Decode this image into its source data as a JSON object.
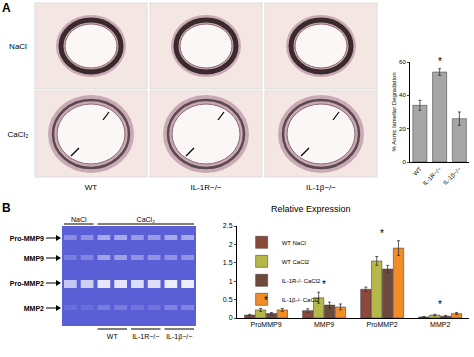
{
  "panel_labels": [
    "A",
    "B"
  ],
  "histology": {
    "rows": [
      "NaCl",
      "CaCl₂"
    ],
    "columns": [
      "WT",
      "IL-1R−/−",
      "IL-1β−/−"
    ]
  },
  "zymogram": {
    "treatments": [
      "NaCl",
      "CaCl₂"
    ],
    "lanes": [
      "WT",
      "IL-1R−/−",
      "IL-1β−/−"
    ],
    "bands": [
      "Pro-MMP9",
      "MMP9",
      "Pro-MMP2",
      "MMP2"
    ]
  },
  "chart_data": [
    {
      "type": "bar",
      "y_label": "% Aortic lamellar Degradation",
      "categories": [
        "WT",
        "IL-1R−/−",
        "IL-1β−/−"
      ],
      "values": [
        34,
        54,
        26
      ],
      "errors": [
        3,
        2,
        4
      ],
      "color": "#a6a6a6",
      "ylim": [
        0,
        60
      ],
      "yticks": [
        0,
        20,
        40,
        60
      ],
      "annotations": [
        {
          "category": "IL-1R−/−",
          "text": "*"
        }
      ]
    },
    {
      "type": "bar",
      "title": "Relative Expression",
      "categories": [
        "ProMMP9",
        "MMP9",
        "ProMMP2",
        "MMP2"
      ],
      "series": [
        {
          "name": "WT NaCl",
          "color": "#8b4a3c",
          "values": [
            0.08,
            0.2,
            0.78,
            0.03
          ],
          "errors": [
            0.02,
            0.05,
            0.06,
            0.01
          ]
        },
        {
          "name": "WT CaCl2",
          "color": "#b7b84a",
          "values": [
            0.22,
            0.55,
            1.55,
            0.08
          ],
          "errors": [
            0.04,
            0.15,
            0.12,
            0.02
          ]
        },
        {
          "name": "IL-1R-/- CaCl2",
          "color": "#6e4a3a",
          "values": [
            0.12,
            0.35,
            1.33,
            0.05
          ],
          "errors": [
            0.03,
            0.08,
            0.1,
            0.02
          ]
        },
        {
          "name": "IL-1β-/- CaCl2",
          "color": "#f28c28",
          "values": [
            0.22,
            0.3,
            1.9,
            0.12
          ],
          "errors": [
            0.04,
            0.08,
            0.2,
            0.03
          ]
        }
      ],
      "ylim": [
        0,
        2.5
      ],
      "yticks": [
        0,
        0.5,
        1,
        1.5,
        2,
        2.5
      ],
      "legend": "upper left",
      "annotations": [
        {
          "category": "ProMMP9",
          "text": "*"
        },
        {
          "category": "MMP9",
          "text": "*"
        },
        {
          "category": "ProMMP2",
          "text": "*"
        },
        {
          "category": "MMP2",
          "text": "*"
        }
      ]
    }
  ]
}
